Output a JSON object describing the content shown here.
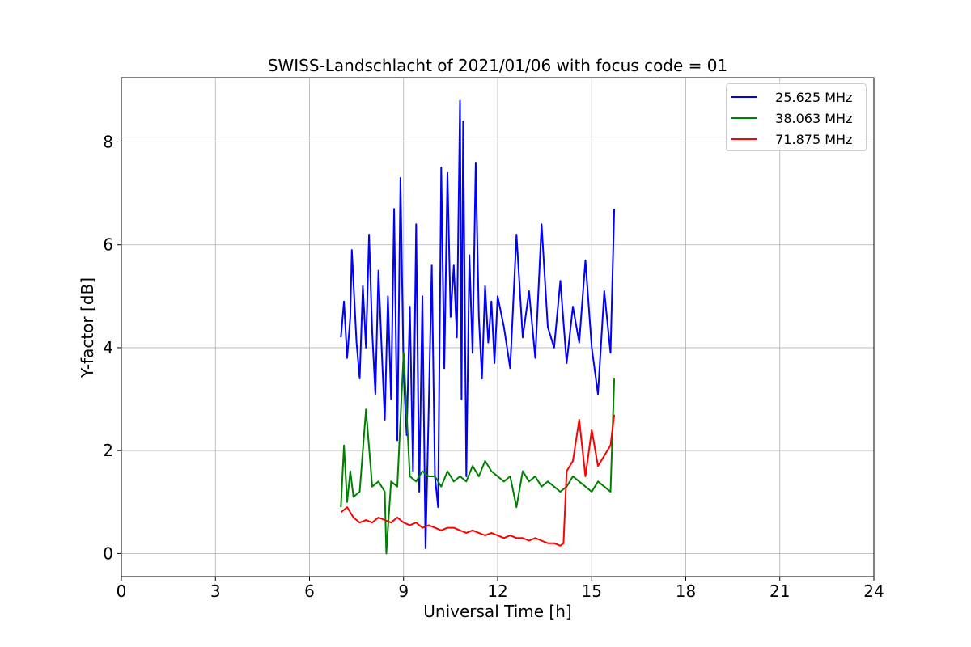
{
  "chart_data": {
    "type": "line",
    "title": "SWISS-Landschlacht of 2021/01/06 with focus code = 01",
    "xlabel": "Universal Time [h]",
    "ylabel": "Y-factor [dB]",
    "xlim": [
      0,
      24
    ],
    "ylim": [
      -0.45,
      9.25
    ],
    "xticks": [
      0,
      3,
      6,
      9,
      12,
      15,
      18,
      21,
      24
    ],
    "yticks": [
      0,
      2,
      4,
      6,
      8
    ],
    "grid": true,
    "legend_position": "top-right",
    "series": [
      {
        "name": "  25.625 MHz",
        "color": "#0000ff",
        "x": [
          7.0,
          7.1,
          7.2,
          7.3,
          7.35,
          7.5,
          7.6,
          7.7,
          7.8,
          7.9,
          8.0,
          8.1,
          8.2,
          8.3,
          8.4,
          8.5,
          8.6,
          8.7,
          8.8,
          8.9,
          9.0,
          9.1,
          9.2,
          9.3,
          9.4,
          9.5,
          9.6,
          9.7,
          9.8,
          9.9,
          10.0,
          10.1,
          10.2,
          10.3,
          10.4,
          10.5,
          10.6,
          10.7,
          10.8,
          10.85,
          10.9,
          11.0,
          11.1,
          11.2,
          11.3,
          11.4,
          11.5,
          11.6,
          11.7,
          11.8,
          11.9,
          12.0,
          12.2,
          12.4,
          12.6,
          12.8,
          13.0,
          13.2,
          13.4,
          13.6,
          13.8,
          14.0,
          14.2,
          14.4,
          14.6,
          14.8,
          15.0,
          15.2,
          15.4,
          15.6,
          15.72
        ],
        "y": [
          4.2,
          4.9,
          3.8,
          4.6,
          5.9,
          4.1,
          3.4,
          5.2,
          4.0,
          6.2,
          4.3,
          3.1,
          5.5,
          4.0,
          2.6,
          5.0,
          3.0,
          6.7,
          2.2,
          7.3,
          3.5,
          2.3,
          4.8,
          1.6,
          6.4,
          1.2,
          5.0,
          0.1,
          2.8,
          5.6,
          1.5,
          0.9,
          7.5,
          3.6,
          7.4,
          4.6,
          5.6,
          4.2,
          8.8,
          3.0,
          8.4,
          1.5,
          5.8,
          3.9,
          7.6,
          4.6,
          3.4,
          5.2,
          4.1,
          4.9,
          3.7,
          5.0,
          4.4,
          3.6,
          6.2,
          4.2,
          5.1,
          3.8,
          6.4,
          4.4,
          4.0,
          5.3,
          3.7,
          4.8,
          4.1,
          5.7,
          4.0,
          3.1,
          5.1,
          3.9,
          6.7
        ]
      },
      {
        "name": "  38.063 MHz",
        "color": "#008000",
        "x": [
          7.0,
          7.1,
          7.2,
          7.3,
          7.4,
          7.6,
          7.8,
          8.0,
          8.2,
          8.4,
          8.45,
          8.6,
          8.8,
          9.0,
          9.2,
          9.4,
          9.6,
          9.8,
          10.0,
          10.2,
          10.4,
          10.6,
          10.8,
          11.0,
          11.2,
          11.4,
          11.6,
          11.8,
          12.0,
          12.2,
          12.4,
          12.6,
          12.8,
          13.0,
          13.2,
          13.4,
          13.6,
          13.8,
          14.0,
          14.2,
          14.4,
          14.6,
          14.8,
          15.0,
          15.2,
          15.4,
          15.6,
          15.72
        ],
        "y": [
          0.9,
          2.1,
          1.0,
          1.6,
          1.1,
          1.2,
          2.8,
          1.3,
          1.4,
          1.2,
          0.0,
          1.4,
          1.3,
          3.9,
          1.5,
          1.4,
          1.6,
          1.5,
          1.5,
          1.3,
          1.6,
          1.4,
          1.5,
          1.4,
          1.7,
          1.5,
          1.8,
          1.6,
          1.5,
          1.4,
          1.5,
          0.9,
          1.6,
          1.4,
          1.5,
          1.3,
          1.4,
          1.3,
          1.2,
          1.3,
          1.5,
          1.4,
          1.3,
          1.2,
          1.4,
          1.3,
          1.2,
          3.4
        ]
      },
      {
        "name": "  71.875 MHz",
        "color": "#ff0000",
        "x": [
          7.0,
          7.2,
          7.4,
          7.6,
          7.8,
          8.0,
          8.2,
          8.4,
          8.6,
          8.8,
          9.0,
          9.2,
          9.4,
          9.6,
          9.8,
          10.0,
          10.2,
          10.4,
          10.6,
          10.8,
          11.0,
          11.2,
          11.4,
          11.6,
          11.8,
          12.0,
          12.2,
          12.4,
          12.6,
          12.8,
          13.0,
          13.2,
          13.4,
          13.6,
          13.8,
          14.0,
          14.1,
          14.2,
          14.4,
          14.6,
          14.8,
          15.0,
          15.2,
          15.4,
          15.6,
          15.72
        ],
        "y": [
          0.8,
          0.9,
          0.7,
          0.6,
          0.65,
          0.6,
          0.7,
          0.65,
          0.6,
          0.7,
          0.6,
          0.55,
          0.6,
          0.5,
          0.55,
          0.5,
          0.45,
          0.5,
          0.5,
          0.45,
          0.4,
          0.45,
          0.4,
          0.35,
          0.4,
          0.35,
          0.3,
          0.35,
          0.3,
          0.3,
          0.25,
          0.3,
          0.25,
          0.2,
          0.2,
          0.15,
          0.2,
          1.6,
          1.8,
          2.6,
          1.5,
          2.4,
          1.7,
          1.9,
          2.1,
          2.7
        ]
      }
    ]
  }
}
